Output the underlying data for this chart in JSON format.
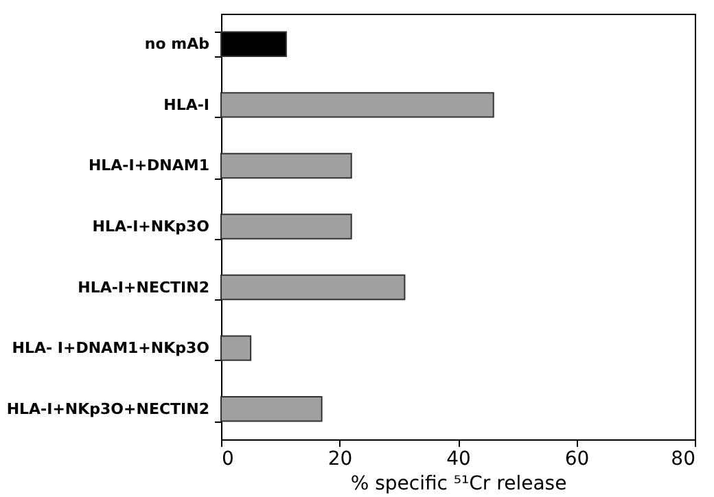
{
  "chart_data": {
    "type": "bar",
    "orientation": "horizontal",
    "xlabel": "% specific ⁵¹Cr release",
    "categories": [
      "no mAb",
      "HLA-I",
      "HLA-I+DNAM1",
      "HLA-I+NKp3O",
      "HLA-I+NECTIN2",
      "HLA- I+DNAM1+NKp3O",
      "HLA-I+NKp3O+NECTIN2"
    ],
    "values": [
      11,
      46,
      22,
      22,
      31,
      5,
      17
    ],
    "colors": [
      "#000000",
      "#a0a0a0",
      "#a0a0a0",
      "#a0a0a0",
      "#a0a0a0",
      "#a0a0a0",
      "#a0a0a0"
    ],
    "xlim": [
      0,
      80
    ],
    "xticks": [
      0,
      20,
      40,
      60,
      80
    ],
    "grid": false
  }
}
